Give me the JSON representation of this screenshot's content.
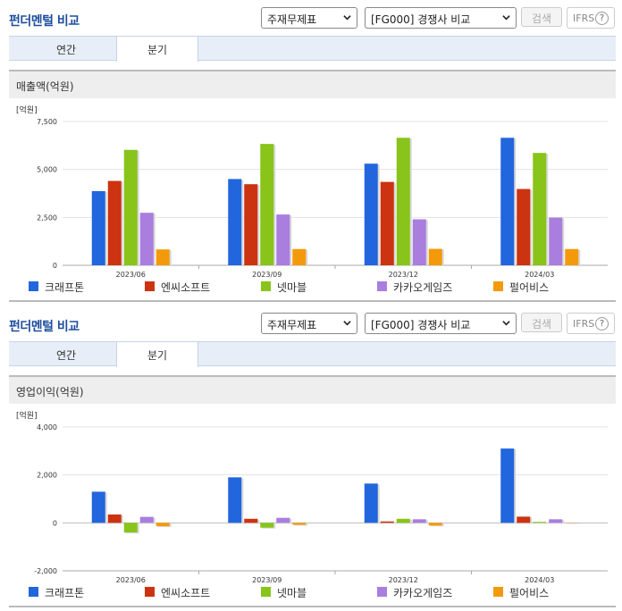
{
  "panels": [
    {
      "header": {
        "title": "펀더멘털 비교",
        "select1": "주재무제표",
        "select2": "[FG000] 경쟁사 비교",
        "search_label": "검색",
        "ifrs_label": "IFRS",
        "help_label": "?"
      },
      "tabs": [
        {
          "label": "연간"
        },
        {
          "label": "분기"
        }
      ],
      "active_tab": 1,
      "chart_title": "매출액(억원)",
      "unit": "[억원]"
    },
    {
      "header": {
        "title": "펀더멘털 비교",
        "select1": "주재무제표",
        "select2": "[FG000] 경쟁사 비교",
        "search_label": "검색",
        "ifrs_label": "IFRS",
        "help_label": "?"
      },
      "tabs": [
        {
          "label": "연간"
        },
        {
          "label": "분기"
        }
      ],
      "active_tab": 1,
      "chart_title": "영업이익(억원)",
      "unit": "[억원]"
    }
  ],
  "chart_data": [
    {
      "type": "bar",
      "title": "매출액(억원)",
      "ylabel": "[억원]",
      "categories": [
        "2023/06",
        "2023/09",
        "2023/12",
        "2024/03"
      ],
      "ylim": [
        0,
        7500
      ],
      "yticks": [
        0,
        2500,
        5000,
        7500
      ],
      "ytick_labels": [
        "0",
        "2,500",
        "5,000",
        "7,500"
      ],
      "legend_position": "bottom",
      "series": [
        {
          "name": "크래프톤",
          "color": "#2266dd",
          "values": [
            3870,
            4500,
            5300,
            6650
          ]
        },
        {
          "name": "엔씨소프트",
          "color": "#cc3311",
          "values": [
            4400,
            4230,
            4350,
            3980
          ]
        },
        {
          "name": "넷마블",
          "color": "#88c41a",
          "values": [
            6020,
            6330,
            6650,
            5860
          ]
        },
        {
          "name": "카카오게임즈",
          "color": "#a97ede",
          "values": [
            2740,
            2650,
            2400,
            2490
          ]
        },
        {
          "name": "펄어비스",
          "color": "#f39a0c",
          "values": [
            830,
            850,
            860,
            850
          ]
        }
      ]
    },
    {
      "type": "bar",
      "title": "영업이익(억원)",
      "ylabel": "[억원]",
      "categories": [
        "2023/06",
        "2023/09",
        "2023/12",
        "2024/03"
      ],
      "ylim": [
        -2000,
        4000
      ],
      "yticks": [
        -2000,
        0,
        2000,
        4000
      ],
      "ytick_labels": [
        "-2,000",
        "0",
        "2,000",
        "4,000"
      ],
      "legend_position": "bottom",
      "series": [
        {
          "name": "크래프톤",
          "color": "#2266dd",
          "values": [
            1300,
            1900,
            1640,
            3100
          ]
        },
        {
          "name": "엔씨소프트",
          "color": "#cc3311",
          "values": [
            350,
            170,
            60,
            260
          ]
        },
        {
          "name": "넷마블",
          "color": "#88c41a",
          "values": [
            -400,
            -200,
            170,
            40
          ]
        },
        {
          "name": "카카오게임즈",
          "color": "#a97ede",
          "values": [
            250,
            210,
            150,
            150
          ]
        },
        {
          "name": "펄어비스",
          "color": "#f39a0c",
          "values": [
            -140,
            -80,
            -110,
            10
          ]
        }
      ]
    }
  ]
}
